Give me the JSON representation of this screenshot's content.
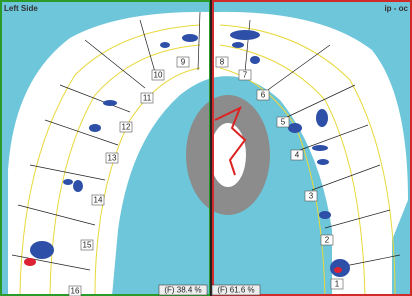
{
  "panels": [
    {
      "title": "Left Side",
      "teeth": [
        "9",
        "10",
        "11",
        "12",
        "13",
        "14",
        "15",
        "16"
      ],
      "force": "(F) 38.4 %"
    },
    {
      "title": "ip - oc",
      "teeth": [
        "8",
        "7",
        "6",
        "5",
        "4",
        "3",
        "2",
        "1"
      ],
      "force": "(F) 61.6 %"
    }
  ]
}
